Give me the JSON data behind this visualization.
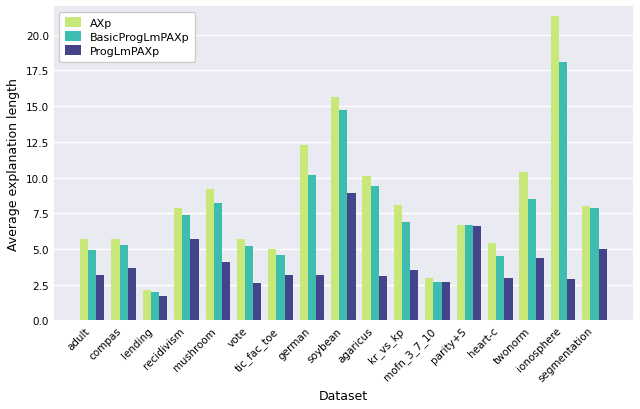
{
  "categories": [
    "adult",
    "compas",
    "lending",
    "recidivism",
    "mushroom",
    "vote",
    "tic_fac_toe",
    "german",
    "soybean",
    "agaricus",
    "kr_vs_kp",
    "mofn_3_7_10",
    "parity+5",
    "heart-c",
    "twonorm",
    "ionosphere",
    "segmentation"
  ],
  "AXp": [
    5.7,
    5.7,
    2.1,
    7.9,
    9.2,
    5.7,
    5.0,
    12.3,
    15.6,
    10.1,
    8.1,
    3.0,
    6.7,
    5.4,
    10.4,
    21.3,
    8.0
  ],
  "BasicProgLmPAXp": [
    4.9,
    5.3,
    2.0,
    7.4,
    8.2,
    5.2,
    4.6,
    10.2,
    14.7,
    9.4,
    6.9,
    2.7,
    6.7,
    4.5,
    8.5,
    18.1,
    7.9
  ],
  "ProgLmPAXp": [
    3.2,
    3.7,
    1.7,
    5.7,
    4.1,
    2.6,
    3.2,
    3.2,
    8.9,
    3.1,
    3.5,
    2.7,
    6.6,
    3.0,
    4.4,
    2.9,
    5.0
  ],
  "AXp_color": "#c8e87a",
  "BasicProgLmPAXp_color": "#3dbdb0",
  "ProgLmPAXp_color": "#44448a",
  "ylabel": "Average explanation length",
  "xlabel": "Dataset",
  "ylim": [
    0,
    22
  ],
  "yticks": [
    0.0,
    2.5,
    5.0,
    7.5,
    10.0,
    12.5,
    15.0,
    17.5,
    20.0
  ],
  "bar_width": 0.26,
  "legend_labels": [
    "AXp",
    "BasicProgLmPAXp",
    "ProgLmPAXp"
  ],
  "figsize": [
    6.4,
    4.1
  ],
  "dpi": 100,
  "plot_bg": "#eaeaf2",
  "grid_color": "#ffffff"
}
